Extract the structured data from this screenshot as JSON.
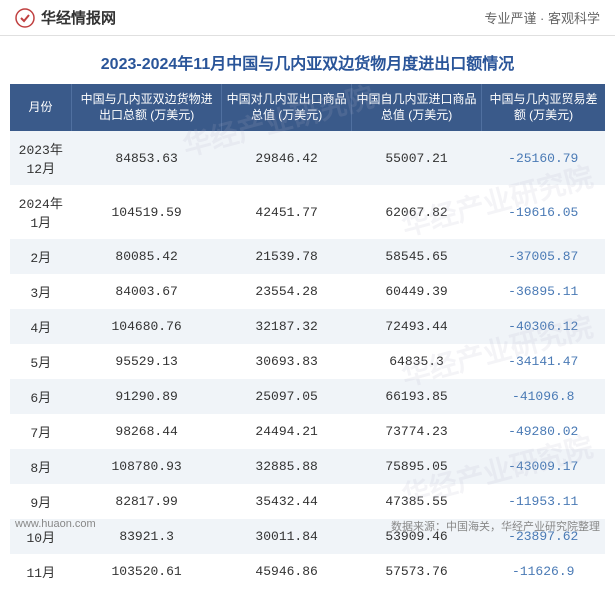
{
  "header": {
    "logo_text": "华经情报网",
    "tagline": "专业严谨 · 客观科学"
  },
  "title": "2023-2024年11月中国与几内亚双边货物月度进出口额情况",
  "table": {
    "columns": [
      "月份",
      "中国与几内亚双边货物进出口总额\n(万美元)",
      "中国对几内亚出口商品总值\n(万美元)",
      "中国自几内亚进口商品总值\n(万美元)",
      "中国与几内亚贸易差额\n(万美元)"
    ],
    "rows": [
      {
        "month": "2023年12月",
        "total": "84853.63",
        "export": "29846.42",
        "import": "55007.21",
        "balance": "-25160.79"
      },
      {
        "month": "2024年1月",
        "total": "104519.59",
        "export": "42451.77",
        "import": "62067.82",
        "balance": "-19616.05"
      },
      {
        "month": "2月",
        "total": "80085.42",
        "export": "21539.78",
        "import": "58545.65",
        "balance": "-37005.87"
      },
      {
        "month": "3月",
        "total": "84003.67",
        "export": "23554.28",
        "import": "60449.39",
        "balance": "-36895.11"
      },
      {
        "month": "4月",
        "total": "104680.76",
        "export": "32187.32",
        "import": "72493.44",
        "balance": "-40306.12"
      },
      {
        "month": "5月",
        "total": "95529.13",
        "export": "30693.83",
        "import": "64835.3",
        "balance": "-34141.47"
      },
      {
        "month": "6月",
        "total": "91290.89",
        "export": "25097.05",
        "import": "66193.85",
        "balance": "-41096.8"
      },
      {
        "month": "7月",
        "total": "98268.44",
        "export": "24494.21",
        "import": "73774.23",
        "balance": "-49280.02"
      },
      {
        "month": "8月",
        "total": "108780.93",
        "export": "32885.88",
        "import": "75895.05",
        "balance": "-43009.17"
      },
      {
        "month": "9月",
        "total": "82817.99",
        "export": "35432.44",
        "import": "47385.55",
        "balance": "-11953.11"
      },
      {
        "month": "10月",
        "total": "83921.3",
        "export": "30011.84",
        "import": "53909.46",
        "balance": "-23897.62"
      },
      {
        "month": "11月",
        "total": "103520.61",
        "export": "45946.86",
        "import": "57573.76",
        "balance": "-11626.9"
      }
    ]
  },
  "footer": {
    "url": "www.huaon.com",
    "source": "数据来源：中国海关，华经产业研究院整理"
  },
  "watermark_text": "华经产业研究院",
  "colors": {
    "header_bg": "#3a5a8a",
    "header_text": "#ffffff",
    "title_color": "#2a5599",
    "row_odd_bg": "#f0f4f8",
    "row_even_bg": "#ffffff",
    "negative_color": "#4a7ab5",
    "text_color": "#333333"
  }
}
